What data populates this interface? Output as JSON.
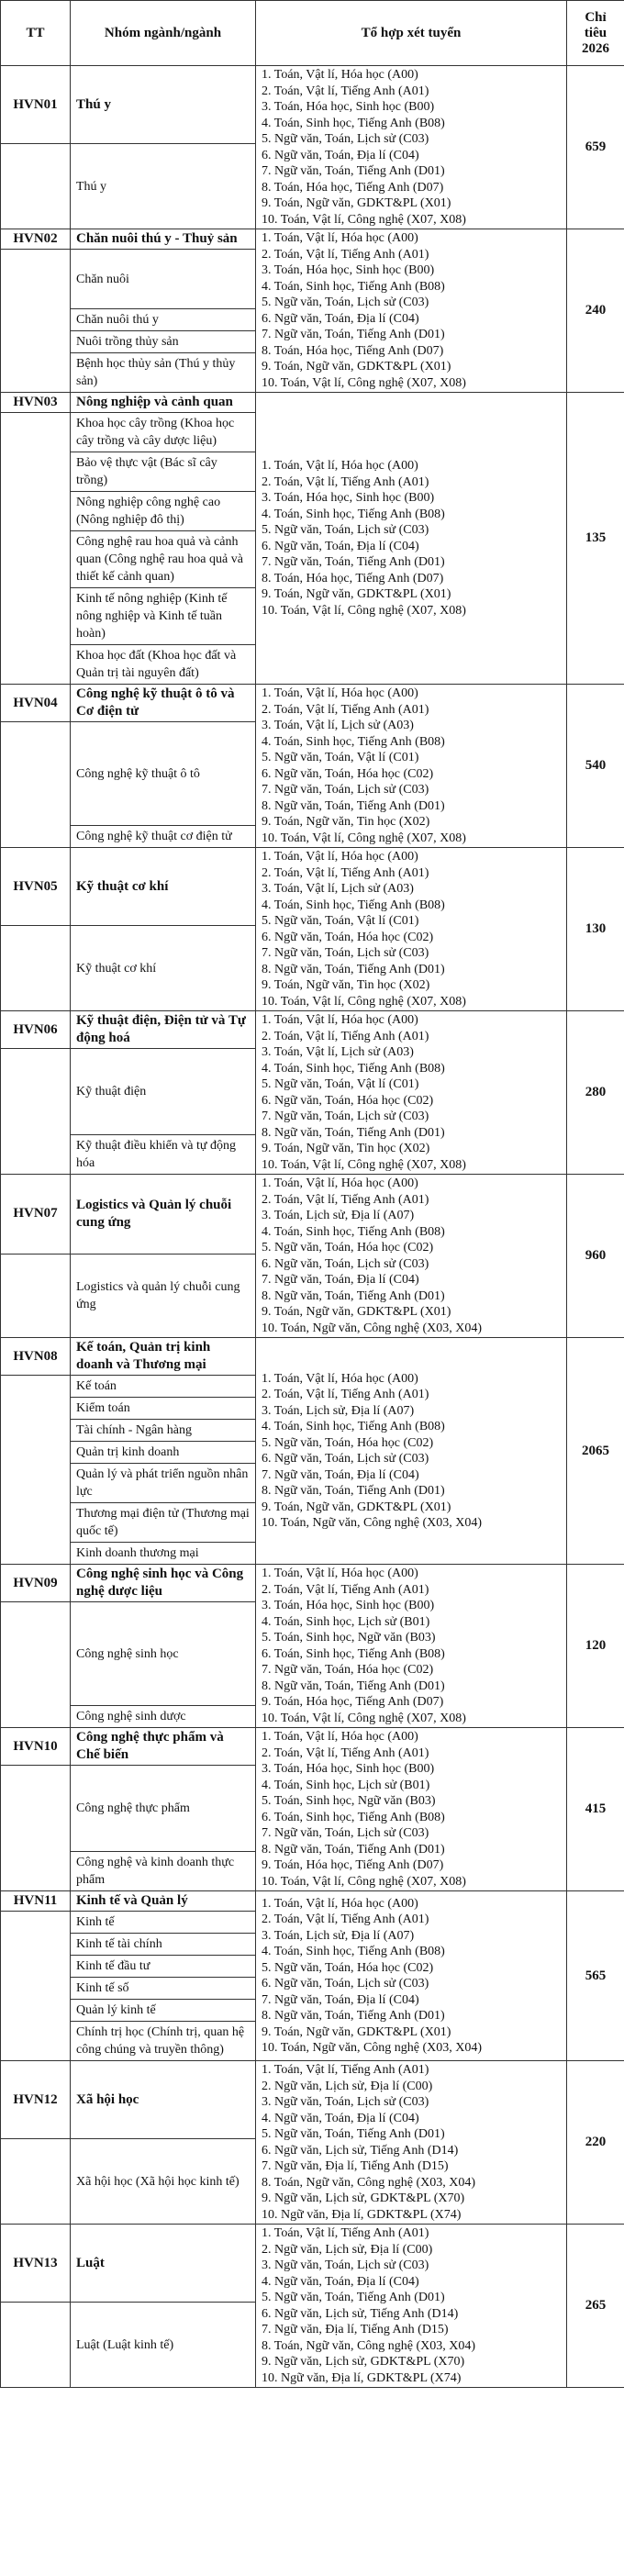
{
  "header": {
    "tt": "TT",
    "group": "Nhóm ngành/ngành",
    "combos": "Tổ hợp xét tuyển",
    "quota": "Chỉ tiêu 2026"
  },
  "groups": [
    {
      "code": "HVN01",
      "name": "Thú y",
      "majors": [
        "Thú y"
      ],
      "quota": "659",
      "combos": [
        "1. Toán, Vật lí, Hóa học (A00)",
        "2. Toán, Vật lí, Tiếng Anh (A01)",
        "3. Toán, Hóa học, Sinh học (B00)",
        "4. Toán, Sinh học, Tiếng Anh (B08)",
        "5. Ngữ văn, Toán, Lịch sử (C03)",
        "6. Ngữ văn, Toán, Địa lí (C04)",
        "7. Ngữ văn, Toán, Tiếng Anh (D01)",
        "8. Toán, Hóa học, Tiếng Anh (D07)",
        "9. Toán, Ngữ văn, GDKT&PL (X01)",
        "10. Toán, Vật lí, Công nghệ (X07, X08)"
      ]
    },
    {
      "code": "HVN02",
      "name": "Chăn nuôi thú y - Thuỷ sản",
      "majors": [
        "Chăn nuôi",
        "Chăn nuôi thú y",
        "Nuôi trồng thủy sản",
        "Bệnh học thủy sản (Thú y thủy sản)"
      ],
      "quota": "240",
      "combos": [
        "1. Toán, Vật lí, Hóa học (A00)",
        "2. Toán, Vật lí, Tiếng Anh (A01)",
        "3. Toán, Hóa học, Sinh học (B00)",
        "4. Toán, Sinh học, Tiếng Anh (B08)",
        "5. Ngữ văn, Toán, Lịch sử (C03)",
        "6. Ngữ văn, Toán, Địa lí (C04)",
        "7. Ngữ văn, Toán, Tiếng Anh (D01)",
        "8. Toán, Hóa học, Tiếng Anh (D07)",
        "9. Toán, Ngữ văn, GDKT&PL (X01)",
        "10. Toán, Vật lí, Công nghệ (X07, X08)"
      ]
    },
    {
      "code": "HVN03",
      "name": "Nông nghiệp và cảnh quan",
      "majors": [
        "Khoa học cây trồng (Khoa học cây trồng và cây dược liệu)",
        "Bảo vệ thực vật (Bác sĩ cây trồng)",
        "Nông nghiệp công nghệ cao (Nông nghiệp đô thị)",
        "Công nghệ rau hoa quả và cảnh quan (Công nghệ rau hoa quả và thiết kế cảnh quan)",
        "Kinh tế nông nghiệp (Kinh tế nông nghiệp và Kinh tế tuần hoàn)",
        "Khoa học đất (Khoa học đất và Quản trị tài nguyên đất)"
      ],
      "quota": "135",
      "combos": [
        "1. Toán, Vật lí, Hóa học (A00)",
        "2. Toán, Vật lí, Tiếng Anh (A01)",
        "3. Toán, Hóa học, Sinh học (B00)",
        "4. Toán, Sinh học, Tiếng Anh (B08)",
        "5. Ngữ văn, Toán, Lịch sử (C03)",
        "6. Ngữ văn, Toán, Địa lí (C04)",
        "7. Ngữ văn, Toán, Tiếng Anh (D01)",
        "8. Toán, Hóa học, Tiếng Anh (D07)",
        "9. Toán, Ngữ văn, GDKT&PL (X01)",
        "10. Toán, Vật lí, Công nghệ (X07, X08)"
      ]
    },
    {
      "code": "HVN04",
      "name": "Công nghệ kỹ thuật ô tô và Cơ điện tử",
      "majors": [
        "Công nghệ kỹ thuật ô tô",
        "Công nghệ kỹ thuật cơ điện tử"
      ],
      "quota": "540",
      "combos": [
        "1. Toán, Vật lí, Hóa học (A00)",
        "2. Toán, Vật lí, Tiếng Anh (A01)",
        "3. Toán, Vật lí, Lịch sử (A03)",
        "4. Toán, Sinh học, Tiếng Anh (B08)",
        "5. Ngữ văn, Toán, Vật lí (C01)",
        "6. Ngữ văn, Toán, Hóa học (C02)",
        "7. Ngữ văn, Toán, Lịch sử (C03)",
        "8. Ngữ văn, Toán, Tiếng Anh (D01)",
        "9. Toán, Ngữ văn, Tin học (X02)",
        "10. Toán, Vật lí, Công nghệ (X07, X08)"
      ]
    },
    {
      "code": "HVN05",
      "name": "Kỹ thuật cơ khí",
      "majors": [
        "Kỹ thuật cơ khí"
      ],
      "quota": "130",
      "combos": [
        "1. Toán, Vật lí, Hóa học (A00)",
        "2. Toán, Vật lí, Tiếng Anh (A01)",
        "3. Toán, Vật lí, Lịch sử (A03)",
        "4. Toán, Sinh học, Tiếng Anh (B08)",
        "5. Ngữ văn, Toán, Vật lí (C01)",
        "6. Ngữ văn, Toán, Hóa học (C02)",
        "7. Ngữ văn, Toán, Lịch sử (C03)",
        "8. Ngữ văn, Toán, Tiếng Anh (D01)",
        "9. Toán, Ngữ văn, Tin học (X02)",
        "10. Toán, Vật lí, Công nghệ (X07, X08)"
      ]
    },
    {
      "code": "HVN06",
      "name": "Kỹ thuật điện, Điện tử và Tự động hoá",
      "majors": [
        "Kỹ thuật điện",
        "Kỹ thuật điều khiển và tự động hóa"
      ],
      "quota": "280",
      "combos": [
        "1. Toán, Vật lí, Hóa học (A00)",
        "2. Toán, Vật lí, Tiếng Anh (A01)",
        "3. Toán, Vật lí, Lịch sử (A03)",
        "4. Toán, Sinh học, Tiếng Anh (B08)",
        "5. Ngữ văn, Toán, Vật lí (C01)",
        "6. Ngữ văn, Toán, Hóa học (C02)",
        "7. Ngữ văn, Toán, Lịch sử (C03)",
        "8. Ngữ văn, Toán, Tiếng Anh (D01)",
        "9. Toán, Ngữ văn, Tin học (X02)",
        "10. Toán, Vật lí, Công nghệ (X07, X08)"
      ]
    },
    {
      "code": "HVN07",
      "name": "Logistics và Quản lý chuỗi cung ứng",
      "majors": [
        "Logistics và quản lý chuỗi cung ứng"
      ],
      "quota": "960",
      "combos": [
        "1. Toán, Vật lí, Hóa học (A00)",
        "2. Toán, Vật lí, Tiếng Anh (A01)",
        "3. Toán, Lịch sử, Địa lí (A07)",
        "4. Toán, Sinh học, Tiếng Anh (B08)",
        "5. Ngữ văn, Toán, Hóa học (C02)",
        "6. Ngữ văn, Toán, Lịch sử (C03)",
        "7. Ngữ văn, Toán, Địa lí (C04)",
        "8. Ngữ văn, Toán, Tiếng Anh (D01)",
        "9. Toán, Ngữ văn, GDKT&PL (X01)",
        "10. Toán, Ngữ văn, Công nghệ (X03, X04)"
      ]
    },
    {
      "code": "HVN08",
      "name": "Kế toán, Quản trị kinh doanh và Thương mại",
      "majors": [
        "Kế toán",
        "Kiểm toán",
        "Tài chính - Ngân hàng",
        "Quản trị kinh doanh",
        "Quản lý và phát triển nguồn nhân lực",
        "Thương mại điện tử (Thương mại quốc tế)",
        "Kinh doanh thương mại"
      ],
      "quota": "2065",
      "combos": [
        "1. Toán, Vật lí, Hóa học (A00)",
        "2. Toán, Vật lí, Tiếng Anh (A01)",
        "3. Toán, Lịch sử, Địa lí (A07)",
        "4. Toán, Sinh học, Tiếng Anh (B08)",
        "5. Ngữ văn, Toán, Hóa học (C02)",
        "6. Ngữ văn, Toán, Lịch sử (C03)",
        "7. Ngữ văn, Toán, Địa lí (C04)",
        "8. Ngữ văn, Toán, Tiếng Anh (D01)",
        "9. Toán, Ngữ văn, GDKT&PL (X01)",
        "10. Toán, Ngữ văn, Công nghệ (X03, X04)"
      ]
    },
    {
      "code": "HVN09",
      "name": "Công nghệ sinh học và Công nghệ dược liệu",
      "majors": [
        "Công nghệ sinh học",
        "Công nghệ sinh dược"
      ],
      "quota": "120",
      "combos": [
        "1. Toán, Vật lí, Hóa học (A00)",
        "2. Toán, Vật lí, Tiếng Anh (A01)",
        "3. Toán, Hóa học, Sinh học (B00)",
        "4. Toán, Sinh học, Lịch sử (B01)",
        "5. Toán, Sinh học, Ngữ văn (B03)",
        "6. Toán, Sinh học, Tiếng Anh (B08)",
        "7. Ngữ văn, Toán, Hóa học (C02)",
        "8. Ngữ văn, Toán, Tiếng Anh (D01)",
        "9. Toán, Hóa học, Tiếng Anh (D07)",
        "10. Toán, Vật lí, Công nghệ (X07, X08)"
      ]
    },
    {
      "code": "HVN10",
      "name": "Công nghệ thực phẩm và Chế biến",
      "majors": [
        "Công nghệ thực phẩm",
        "Công nghệ và kinh doanh thực phẩm"
      ],
      "quota": "415",
      "combos": [
        "1. Toán, Vật lí, Hóa học (A00)",
        "2. Toán, Vật lí, Tiếng Anh (A01)",
        "3. Toán, Hóa học, Sinh học (B00)",
        "4. Toán, Sinh học, Lịch sử (B01)",
        "5. Toán, Sinh học, Ngữ văn (B03)",
        "6. Toán, Sinh học, Tiếng Anh (B08)",
        "7. Ngữ văn, Toán, Lịch sử (C03)",
        "8. Ngữ văn, Toán, Tiếng Anh (D01)",
        "9. Toán, Hóa học, Tiếng Anh (D07)",
        "10. Toán, Vật lí, Công nghệ (X07, X08)"
      ]
    },
    {
      "code": "HVN11",
      "name": "Kinh tế và Quản lý",
      "majors": [
        "Kinh tế",
        "Kinh tế tài chính",
        "Kinh tế đầu tư",
        "Kinh tế số",
        "Quản lý kinh tế",
        "Chính trị học (Chính trị, quan hệ công chúng và truyền thông)"
      ],
      "quota": "565",
      "combos": [
        "1. Toán, Vật lí, Hóa học (A00)",
        "2. Toán, Vật lí, Tiếng Anh (A01)",
        "3. Toán, Lịch sử, Địa lí (A07)",
        "4. Toán, Sinh học, Tiếng Anh (B08)",
        "5. Ngữ văn, Toán, Hóa học (C02)",
        "6. Ngữ văn, Toán, Lịch sử (C03)",
        "7. Ngữ văn, Toán, Địa lí (C04)",
        "8. Ngữ văn, Toán, Tiếng Anh (D01)",
        "9. Toán, Ngữ văn, GDKT&PL (X01)",
        "10. Toán, Ngữ văn, Công nghệ (X03, X04)"
      ]
    },
    {
      "code": "HVN12",
      "name": "Xã hội học",
      "majors": [
        "Xã hội học (Xã hội học kinh tế)"
      ],
      "quota": "220",
      "combos": [
        "1. Toán, Vật lí, Tiếng Anh (A01)",
        "2. Ngữ văn, Lịch sử, Địa lí (C00)",
        "3. Ngữ văn, Toán, Lịch sử (C03)",
        "4. Ngữ văn, Toán, Địa lí (C04)",
        "5. Ngữ văn, Toán, Tiếng Anh (D01)",
        "6. Ngữ văn, Lịch sử, Tiếng Anh (D14)",
        "7. Ngữ văn, Địa lí, Tiếng Anh (D15)",
        "8. Toán, Ngữ văn, Công nghệ (X03, X04)",
        "9. Ngữ văn, Lịch sử, GDKT&PL (X70)",
        "10. Ngữ văn, Địa lí, GDKT&PL (X74)"
      ]
    },
    {
      "code": "HVN13",
      "name": "Luật",
      "majors": [
        "Luật (Luật kinh tế)"
      ],
      "quota": "265",
      "combos": [
        "1. Toán, Vật lí, Tiếng Anh (A01)",
        "2. Ngữ văn, Lịch sử, Địa lí (C00)",
        "3. Ngữ văn, Toán, Lịch sử (C03)",
        "4. Ngữ văn, Toán, Địa lí (C04)",
        "5. Ngữ văn, Toán, Tiếng Anh (D01)",
        "6. Ngữ văn, Lịch sử, Tiếng Anh (D14)",
        "7. Ngữ văn, Địa lí, Tiếng Anh (D15)",
        "8. Toán, Ngữ văn, Công nghệ (X03, X04)",
        "9. Ngữ văn, Lịch sử, GDKT&PL (X70)",
        "10. Ngữ văn, Địa lí, GDKT&PL (X74)"
      ]
    }
  ]
}
